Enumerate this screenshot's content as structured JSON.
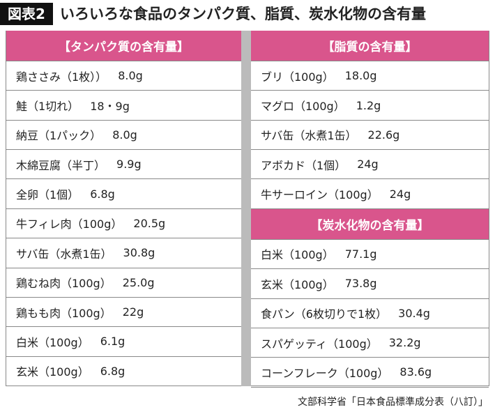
{
  "header": {
    "label": "図表2",
    "title": "いろいろな食品のタンパク質、脂質、炭水化物の含有量"
  },
  "protein": {
    "heading": "【タンパク質の含有量】",
    "rows": [
      [
        "鶏ささみ（1枚））",
        "8.0g"
      ],
      [
        "鮭（1切れ）",
        "18・9g"
      ],
      [
        "納豆（1パック）",
        "8.0g"
      ],
      [
        "木綿豆腐（半丁）",
        "9.9g"
      ],
      [
        "全卵（1個）",
        "6.8g"
      ],
      [
        "牛フィレ肉（100g）",
        "20.5g"
      ],
      [
        "サバ缶（水煮1缶）",
        "30.8g"
      ],
      [
        "鶏むね肉（100g）",
        "25.0g"
      ],
      [
        "鶏もも肉（100g）",
        "22g"
      ],
      [
        "白米（100g）",
        "6.1g"
      ],
      [
        "玄米（100g）",
        "6.8g"
      ]
    ]
  },
  "fat": {
    "heading": "【脂質の含有量】",
    "rows": [
      [
        "ブリ（100g）",
        "18.0g"
      ],
      [
        "マグロ（100g）",
        "1.2g"
      ],
      [
        "サバ缶（水煮1缶）",
        "22.6g"
      ],
      [
        "アボカド（1個）",
        "24g"
      ],
      [
        "牛サーロイン（100g）",
        "24g"
      ]
    ]
  },
  "carbs": {
    "heading": "【炭水化物の含有量】",
    "rows": [
      [
        "白米（100g）",
        "77.1g"
      ],
      [
        "玄米（100g）",
        "73.8g"
      ],
      [
        "食パン（6枚切りで1枚）",
        "30.4g"
      ],
      [
        "スパゲッティ（100g）",
        "32.2g"
      ],
      [
        "コーンフレーク（100g）",
        "83.6g"
      ]
    ]
  },
  "source": "文部科学省「日本食品標準成分表（八訂）」"
}
